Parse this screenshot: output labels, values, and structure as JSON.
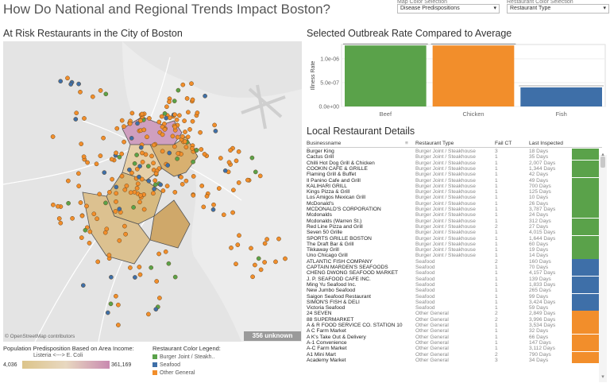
{
  "dashboard_title": "How Do National and Regional Trends Impact Boston?",
  "filters": [
    {
      "label": "Map Color Selection",
      "value": "Disease Predispositions"
    },
    {
      "label": "Restaurant Color Selection",
      "value": "Restaurant Type"
    }
  ],
  "map": {
    "title": "At Risk Restaurants in the City of Boston",
    "attribution": "© OpenStreetMap contributors",
    "unknown_badge": "356 unknown"
  },
  "population_legend": {
    "title": "Population Predisposition Based on Area Income:",
    "subtitle": "Listeria <---> E. Coli",
    "min": "4,036",
    "max": "361,169"
  },
  "color_legend": {
    "title": "Restaurant Color Legend:",
    "items": [
      {
        "label": "Burger Joint / Steakh..",
        "color": "#5aa24a"
      },
      {
        "label": "Seafood",
        "color": "#3e6fa8"
      },
      {
        "label": "Other General",
        "color": "#f28e2b"
      }
    ]
  },
  "colors": {
    "burger": "#5aa24a",
    "seafood": "#3e6fa8",
    "other": "#f28e2b"
  },
  "chart_data": {
    "type": "bar",
    "title": "Selected Outbreak Rate Compared to Average",
    "categories": [
      "Beef",
      "Chicken",
      "Fish"
    ],
    "values": [
      1.28e-06,
      1.28e-06,
      4e-07
    ],
    "ylabel": "Illness Rate",
    "yticks": [
      "0.0e+00",
      "5.0e-07",
      "1.0e-06"
    ],
    "ytick_values": [
      0,
      5e-07,
      1e-06
    ],
    "ylim": [
      0,
      1.3e-06
    ],
    "bar_colors": [
      "#5aa24a",
      "#f28e2b",
      "#3e6fa8"
    ]
  },
  "table": {
    "title": "Local Restaurant Details",
    "headers": {
      "name": "Businessname",
      "type": "Restaurant Type",
      "fail": "Fail CT",
      "last": "Last Inspected"
    },
    "rows": [
      {
        "name": "Burger King",
        "type": "Burger Joint / Steakhouse",
        "fail": "3",
        "last": "18 Days",
        "cat": "burger"
      },
      {
        "name": "Cactus Grill",
        "type": "Burger Joint / Steakhouse",
        "fail": "1",
        "last": "35 Days",
        "cat": "burger"
      },
      {
        "name": "Chilli Hot Dog Grill & Chicken",
        "type": "Burger Joint / Steakhouse",
        "fail": "1",
        "last": "2,007 Days",
        "cat": "burger"
      },
      {
        "name": "COOKIN CAFE & GRILLE",
        "type": "Burger Joint / Steakhouse",
        "fail": "1",
        "last": "1,344 Days",
        "cat": "burger"
      },
      {
        "name": "Flaming Grill & Buffet",
        "type": "Burger Joint / Steakhouse",
        "fail": "1",
        "last": "42 Days",
        "cat": "burger"
      },
      {
        "name": "Il Panino Cafe and Grill",
        "type": "Burger Joint / Steakhouse",
        "fail": "1",
        "last": "49 Days",
        "cat": "burger"
      },
      {
        "name": "KALIHARI GRILL",
        "type": "Burger Joint / Steakhouse",
        "fail": "1",
        "last": "700 Days",
        "cat": "burger"
      },
      {
        "name": "Kings Pizza & Grill",
        "type": "Burger Joint / Steakhouse",
        "fail": "1",
        "last": "125 Days",
        "cat": "burger"
      },
      {
        "name": "Los Amigos Mexican Grill",
        "type": "Burger Joint / Steakhouse",
        "fail": "1",
        "last": "10 Days",
        "cat": "burger"
      },
      {
        "name": "McDonald's",
        "type": "Burger Joint / Steakhouse",
        "fail": "1",
        "last": "26 Days",
        "cat": "burger"
      },
      {
        "name": "MCDONALD'S CORPORATION",
        "type": "Burger Joint / Steakhouse",
        "fail": "1",
        "last": "3,787 Days",
        "cat": "burger"
      },
      {
        "name": "Mcdonalds",
        "type": "Burger Joint / Steakhouse",
        "fail": "1",
        "last": "24 Days",
        "cat": "burger"
      },
      {
        "name": "Mcdonalds (Warren St.)",
        "type": "Burger Joint / Steakhouse",
        "fail": "1",
        "last": "312 Days",
        "cat": "burger"
      },
      {
        "name": "Red Line Pizza and Grill",
        "type": "Burger Joint / Steakhouse",
        "fail": "2",
        "last": "27 Days",
        "cat": "burger"
      },
      {
        "name": "Seven 50 Grille",
        "type": "Burger Joint / Steakhouse",
        "fail": "1",
        "last": "4,015 Days",
        "cat": "burger"
      },
      {
        "name": "SPORTS GRILLE BOSTON",
        "type": "Burger Joint / Steakhouse",
        "fail": "1",
        "last": "1,644 Days",
        "cat": "burger"
      },
      {
        "name": "The Draft Bar & Grill",
        "type": "Burger Joint / Steakhouse",
        "fail": "1",
        "last": "60 Days",
        "cat": "burger"
      },
      {
        "name": "Tikkaway Grill",
        "type": "Burger Joint / Steakhouse",
        "fail": "1",
        "last": "19 Days",
        "cat": "burger"
      },
      {
        "name": "Uno Chicago Grill",
        "type": "Burger Joint / Steakhouse",
        "fail": "1",
        "last": "14 Days",
        "cat": "burger"
      },
      {
        "name": "ATLANTIC FISH COMPANY",
        "type": "Seafood",
        "fail": "2",
        "last": "160 Days",
        "cat": "seafood"
      },
      {
        "name": "CAPTAIN MARDEN'S SEAFOODS",
        "type": "Seafood",
        "fail": "1",
        "last": "70 Days",
        "cat": "seafood"
      },
      {
        "name": "CHENG DWONG SEAFOOD MARKET",
        "type": "Seafood",
        "fail": "1",
        "last": "4,157 Days",
        "cat": "seafood"
      },
      {
        "name": "J. P. SEAFOOD CAFE INC.",
        "type": "Seafood",
        "fail": "1",
        "last": "139 Days",
        "cat": "seafood"
      },
      {
        "name": "Ming Yu Seafood Inc.",
        "type": "Seafood",
        "fail": "1",
        "last": "1,833 Days",
        "cat": "seafood"
      },
      {
        "name": "New Jumbo Seafood",
        "type": "Seafood",
        "fail": "1",
        "last": "265 Days",
        "cat": "seafood"
      },
      {
        "name": "Saigon Seafood Restaurant",
        "type": "Seafood",
        "fail": "1",
        "last": "99 Days",
        "cat": "seafood"
      },
      {
        "name": "SIMON'S FISH & DELI",
        "type": "Seafood",
        "fail": "1",
        "last": "3,424 Days",
        "cat": "seafood"
      },
      {
        "name": "Victoria Seafood",
        "type": "Seafood",
        "fail": "1",
        "last": "59 Days",
        "cat": "seafood"
      },
      {
        "name": "24 SEVEN",
        "type": "Other General",
        "fail": "2",
        "last": "2,849 Days",
        "cat": "other"
      },
      {
        "name": "88 SUPERMARKET",
        "type": "Other General",
        "fail": "2",
        "last": "3,996 Days",
        "cat": "other"
      },
      {
        "name": "A & R FOOD SERVICE CO.  STATION 10",
        "type": "Other General",
        "fail": "1",
        "last": "3,534 Days",
        "cat": "other"
      },
      {
        "name": "A C Farm Market",
        "type": "Other General",
        "fail": "1",
        "last": "32 Days",
        "cat": "other"
      },
      {
        "name": "A K's Take Out & Delivery",
        "type": "Other General",
        "fail": "1",
        "last": "66 Days",
        "cat": "other"
      },
      {
        "name": "A-1 Convenience",
        "type": "Other General",
        "fail": "1",
        "last": "147 Days",
        "cat": "other"
      },
      {
        "name": "A-C Farm Market",
        "type": "Other General",
        "fail": "1",
        "last": "3,112 Days",
        "cat": "other"
      },
      {
        "name": "A1 Mini Mart",
        "type": "Other General",
        "fail": "2",
        "last": "790 Days",
        "cat": "other"
      },
      {
        "name": "Academy Market",
        "type": "Other General",
        "fail": "3",
        "last": "34 Days",
        "cat": "other"
      }
    ]
  }
}
